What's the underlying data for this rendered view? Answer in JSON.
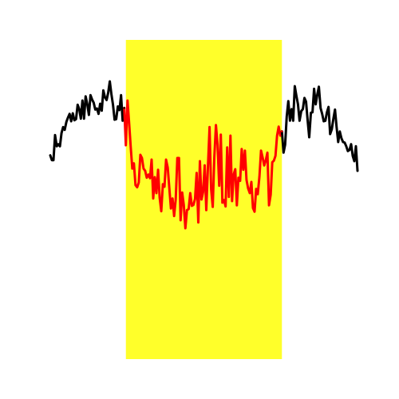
{
  "chart_data": {
    "type": "line",
    "title": "",
    "xlabel": "",
    "ylabel": "",
    "axes_visible": false,
    "grid": false,
    "xlim": [
      0,
      190
    ],
    "ylim": [
      -4.0,
      2.0
    ],
    "highlight_band": {
      "x_start": 47,
      "x_end": 144,
      "y_range": [
        -4.0,
        2.0
      ],
      "color": "#ffff2a"
    },
    "segment_colors": {
      "outside": "#000000",
      "inside": "#ff0000"
    },
    "series": [
      {
        "values": [
          -0.17,
          -0.26,
          -0.26,
          0.21,
          0.0,
          0.04,
          0.0,
          0.25,
          0.36,
          0.31,
          0.46,
          0.54,
          0.61,
          0.47,
          0.62,
          0.49,
          0.51,
          0.78,
          0.7,
          0.52,
          0.86,
          0.52,
          0.94,
          0.79,
          0.59,
          0.96,
          0.88,
          0.82,
          0.69,
          0.71,
          0.61,
          0.8,
          0.67,
          1.05,
          0.92,
          0.87,
          1.01,
          1.22,
          0.98,
          0.78,
          0.5,
          0.51,
          0.75,
          0.68,
          0.96,
          0.48,
          0.72,
          0.02,
          0.86,
          0.44,
          -0.01,
          -0.42,
          -0.32,
          -0.73,
          -0.77,
          -0.68,
          -0.16,
          -0.22,
          -0.42,
          -0.46,
          -0.59,
          -0.53,
          -0.6,
          -0.25,
          -0.98,
          -0.58,
          -0.88,
          -0.44,
          -0.97,
          -1.22,
          -0.71,
          -0.76,
          -0.25,
          -0.4,
          -0.79,
          -1.17,
          -0.98,
          -1.31,
          -1.0,
          -0.22,
          -0.22,
          -1.39,
          -0.87,
          -1.1,
          -1.54,
          -1.2,
          -1.18,
          -0.88,
          -1.12,
          -1.1,
          -0.99,
          -0.5,
          -1.43,
          -0.28,
          -1.0,
          -0.86,
          -0.36,
          -1.2,
          -0.41,
          0.36,
          -0.81,
          -1.14,
          -0.2,
          0.4,
          0.03,
          -0.74,
          0.22,
          -1.06,
          -1.01,
          -1.13,
          -0.02,
          -0.95,
          0.2,
          -1.03,
          -0.53,
          -0.43,
          -1.11,
          -0.59,
          -0.65,
          -0.05,
          -0.44,
          -0.08,
          -0.63,
          -0.79,
          -0.88,
          -0.67,
          -1.16,
          -1.23,
          -0.8,
          -0.9,
          -0.57,
          -0.08,
          -0.21,
          -0.36,
          -0.26,
          -0.12,
          -1.11,
          -0.91,
          -0.3,
          -0.27,
          -0.18,
          0.2,
          0.37,
          0.2,
          0.28,
          -0.12,
          0.03,
          0.56,
          0.85,
          0.48,
          0.7,
          0.48,
          1.13,
          0.95,
          0.79,
          0.48,
          0.66,
          0.7,
          0.91,
          0.84,
          0.49,
          0.17,
          0.63,
          0.64,
          1.08,
          0.79,
          0.97,
          1.12,
          0.72,
          0.61,
          0.47,
          0.48,
          0.64,
          0.74,
          0.23,
          0.32,
          0.52,
          0.69,
          0.36,
          0.08,
          0.28,
          0.15,
          0.08,
          0.07,
          0.0,
          -0.09,
          -0.07,
          0.04,
          -0.18,
          -0.28,
          0.0,
          -0.46
        ]
      }
    ]
  }
}
